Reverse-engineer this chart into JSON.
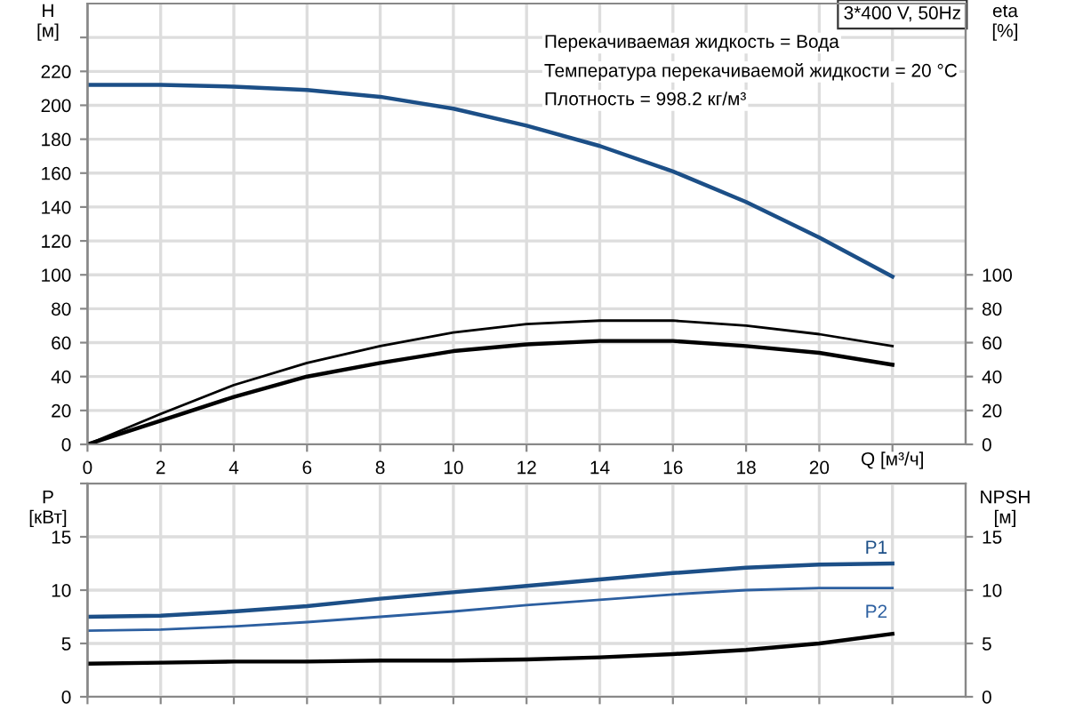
{
  "chart_data": [
    {
      "type": "line",
      "xlabel": "Q [м³/ч]",
      "ylabel": "H\n[м]",
      "y2label": "eta\n[%]",
      "x": [
        0,
        2,
        4,
        6,
        8,
        10,
        12,
        14,
        16,
        18,
        20,
        22
      ],
      "xlim": [
        0,
        24
      ],
      "xticks": [
        0,
        2,
        4,
        6,
        8,
        10,
        12,
        14,
        16,
        18,
        20,
        {
          "value": 22,
          "label": null
        }
      ],
      "ylim": [
        0,
        260
      ],
      "yticks": [
        0,
        20,
        40,
        60,
        80,
        100,
        120,
        140,
        160,
        180,
        200,
        220,
        {
          "value": 240,
          "label": null
        }
      ],
      "y2lim": [
        0,
        260
      ],
      "y2ticks": [
        0,
        20,
        40,
        60,
        80,
        100
      ],
      "series": [
        {
          "color": "#1c4f87",
          "values": [
            212,
            212,
            211,
            209,
            205,
            198,
            188,
            176,
            161,
            143,
            122,
            99
          ]
        },
        {
          "color": "#000000",
          "axis": "y2",
          "values": [
            0,
            18,
            35,
            48,
            58,
            66,
            71,
            73,
            73,
            70,
            65,
            58
          ]
        },
        {
          "color": "#000000",
          "axis": "y2",
          "values": [
            0,
            14,
            28,
            40,
            48,
            55,
            59,
            61,
            61,
            58,
            54,
            47
          ]
        }
      ],
      "annotations": [
        "3*400 V, 50Hz",
        "Перекачиваемая жидкость = Вода",
        "Температура перекачиваемой жидкости = 20 °C",
        "Плотность = 998.2 кг/м³"
      ],
      "grid": true,
      "legend": false,
      "marker": "none",
      "line_style": "solid"
    },
    {
      "type": "line",
      "ylabel": "P\n[кВт]",
      "y2label": "NPSH\n[м]",
      "x": [
        0,
        2,
        4,
        6,
        8,
        10,
        12,
        14,
        16,
        18,
        20,
        22
      ],
      "xlim": [
        0,
        24
      ],
      "xticks": [
        0,
        2,
        4,
        6,
        8,
        10,
        12,
        14,
        16,
        18,
        20,
        22
      ],
      "ylim": [
        0,
        20
      ],
      "yticks": [
        0,
        5,
        10,
        15,
        {
          "value": 20,
          "label": null
        }
      ],
      "y2lim": [
        0,
        20
      ],
      "y2ticks": [
        0,
        5,
        10,
        15
      ],
      "tick_labels": "y",
      "series": [
        {
          "name": "P1",
          "color": "#1c4f87",
          "values": [
            7.5,
            7.6,
            8,
            8.5,
            9.2,
            9.8,
            10.4,
            11,
            11.6,
            12.1,
            12.4,
            12.5
          ]
        },
        {
          "name": "P2",
          "color": "#2c5fa0",
          "values": [
            6.2,
            6.3,
            6.6,
            7,
            7.5,
            8,
            8.6,
            9.1,
            9.6,
            10,
            10.2,
            10.2
          ]
        },
        {
          "color": "#000000",
          "axis": "y2",
          "values": [
            3.1,
            3.2,
            3.3,
            3.3,
            3.4,
            3.4,
            3.5,
            3.7,
            4,
            4.4,
            5,
            5.9
          ]
        }
      ],
      "grid": true,
      "legend": false,
      "marker": "none",
      "line_style": "solid"
    }
  ]
}
